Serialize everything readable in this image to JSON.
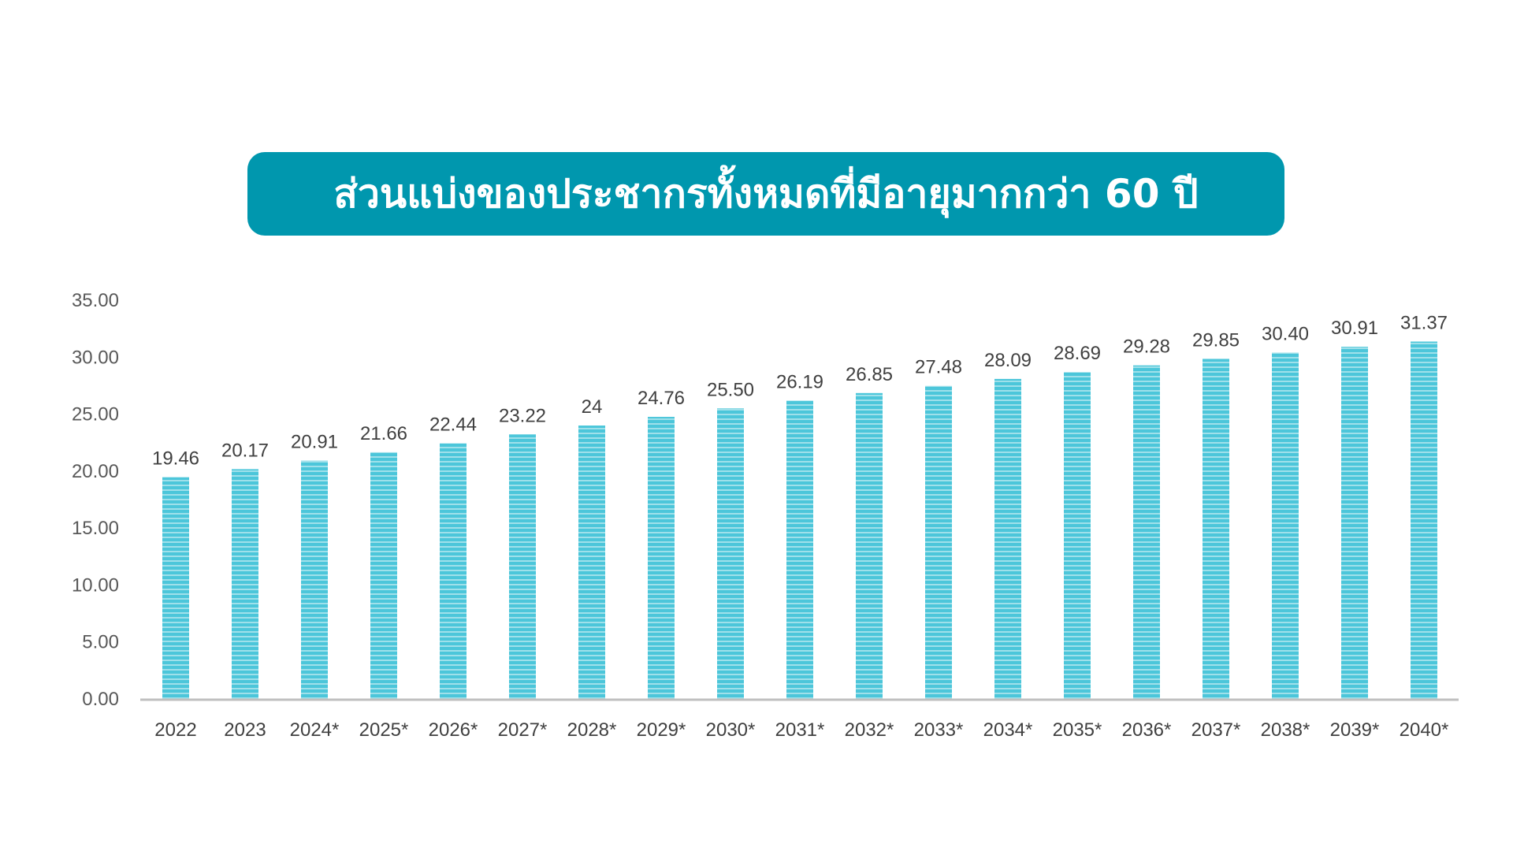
{
  "chart_data": {
    "type": "bar",
    "title": "ส่วนแบ่งของประชากรทั้งหมดที่มีอายุมากกว่า 60 ปี",
    "xlabel": "",
    "ylabel": "",
    "ylim": [
      0,
      35
    ],
    "yticks": [
      "0.00",
      "5.00",
      "10.00",
      "15.00",
      "20.00",
      "25.00",
      "30.00",
      "35.00"
    ],
    "categories": [
      "2022",
      "2023",
      "2024*",
      "2025*",
      "2026*",
      "2027*",
      "2028*",
      "2029*",
      "2030*",
      "2031*",
      "2032*",
      "2033*",
      "2034*",
      "2035*",
      "2036*",
      "2037*",
      "2038*",
      "2039*",
      "2040*"
    ],
    "values": [
      19.46,
      20.17,
      20.91,
      21.66,
      22.44,
      23.22,
      24,
      24.76,
      25.5,
      26.19,
      26.85,
      27.48,
      28.09,
      28.69,
      29.28,
      29.85,
      30.4,
      30.91,
      31.37
    ],
    "data_labels": [
      "19.46",
      "20.17",
      "20.91",
      "21.66",
      "22.44",
      "23.22",
      "24",
      "24.76",
      "25.50",
      "26.19",
      "26.85",
      "27.48",
      "28.09",
      "28.69",
      "29.28",
      "29.85",
      "30.40",
      "30.91",
      "31.37"
    ],
    "grid": false,
    "bar_color": "#4cc6da",
    "title_bg": "#0097ae"
  }
}
